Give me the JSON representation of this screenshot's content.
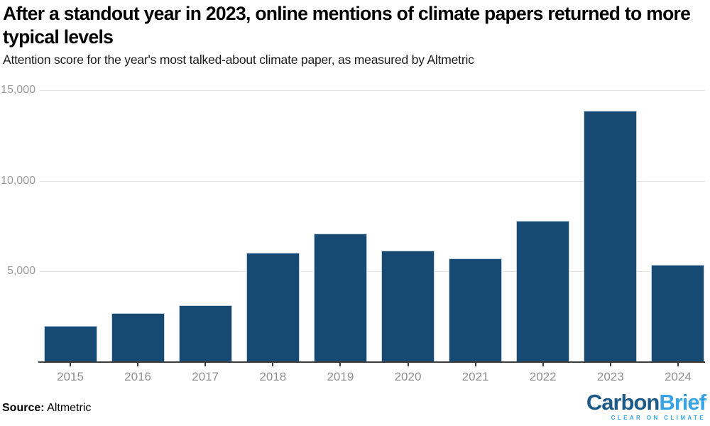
{
  "header": {
    "title": "After a standout year in 2023, online mentions of climate papers returned to more typical levels",
    "title_lines": [
      "After a standout year in 2023, online mentions of climate papers returned to more",
      "typical levels"
    ],
    "subtitle": "Attention score for the year's most talked-about climate paper, as measured by Altmetric"
  },
  "chart_data": {
    "type": "bar",
    "categories": [
      "2015",
      "2016",
      "2017",
      "2018",
      "2019",
      "2020",
      "2021",
      "2022",
      "2023",
      "2024"
    ],
    "values": [
      2000,
      2700,
      3140,
      6040,
      7090,
      6160,
      5700,
      7800,
      13880,
      5370
    ],
    "title": "After a standout year in 2023, online mentions of climate papers returned to more typical levels",
    "subtitle": "Attention score for the year's most talked-about climate paper, as measured by Altmetric",
    "xlabel": "",
    "ylabel": "",
    "ylim": [
      0,
      15000
    ],
    "yticks": [
      {
        "value": 5000,
        "label": "5,000"
      },
      {
        "value": 10000,
        "label": "10,000"
      },
      {
        "value": 15000,
        "label": "15,000"
      }
    ],
    "grid": true,
    "legend": false,
    "bar_color": "#164a72"
  },
  "footer": {
    "source_label": "Source:",
    "source_value": "Altmetric"
  },
  "logo": {
    "text_primary": "Carbon",
    "text_secondary": "Brief",
    "tagline": "CLEAR ON CLIMATE"
  },
  "colors": {
    "bar_fill": "#164a72",
    "bar_stroke": "#c3d2dd",
    "axis_line": "#3c3c3c",
    "gridline": "#e4e4e4",
    "y_tick_label": "#9b9b9b",
    "x_tick_label": "#8f8f8f",
    "logo_primary": "#1d5a87",
    "logo_secondary": "#38a3e4"
  }
}
